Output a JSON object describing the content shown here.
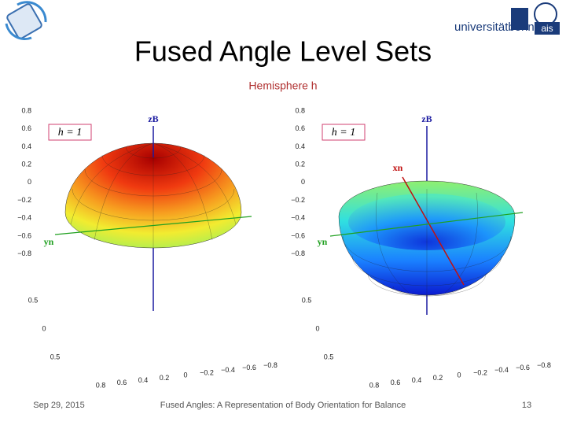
{
  "header": {
    "title": "Fused Angle Level Sets",
    "subtitle": "Hemisphere h",
    "logo_text": "universitätbonn",
    "logo_badge": "ais"
  },
  "plots": [
    {
      "level_label": "h = 1",
      "z_axis_label": "zB",
      "y_axis_label": "yn",
      "z_ticks": [
        "0.8",
        "0.6",
        "0.4",
        "0.2",
        "0",
        "−0.2",
        "−0.4",
        "−0.6",
        "−0.8"
      ],
      "y_ticks": [
        "0.5",
        "0",
        "0.5"
      ],
      "x_ticks": [
        "0.8",
        "0.6",
        "0.4",
        "0.2",
        "0",
        "−0.2",
        "−0.4",
        "−0.6",
        "−0.8"
      ]
    },
    {
      "level_label": "h = 1",
      "z_axis_label": "zB",
      "y_axis_label": "yn",
      "x_axis_label": "xn",
      "z_ticks": [
        "0.8",
        "0.6",
        "0.4",
        "0.2",
        "0",
        "−0.2",
        "−0.4",
        "−0.6",
        "−0.8"
      ],
      "y_ticks": [
        "0.5",
        "0",
        "0.5"
      ],
      "x_ticks": [
        "0.8",
        "0.6",
        "0.4",
        "0.2",
        "0",
        "−0.2",
        "−0.4",
        "−0.6",
        "−0.8"
      ]
    }
  ],
  "footer": {
    "date": "Sep 29, 2015",
    "text": "Fused Angles: A Representation of Body Orientation for Balance",
    "page": "13"
  }
}
